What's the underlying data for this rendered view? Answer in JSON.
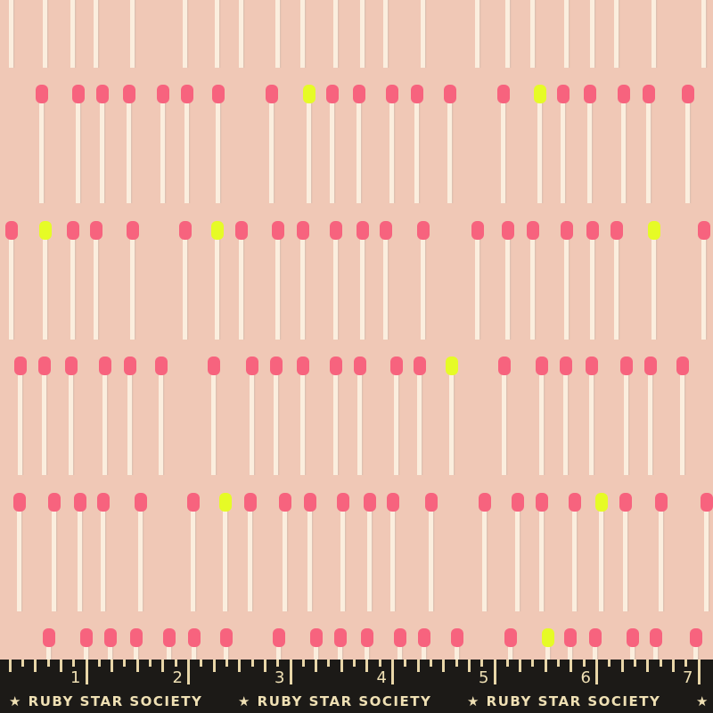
{
  "colors": {
    "background": "#f0c8b6",
    "match_head_pink": "#f7637e",
    "match_head_yellow": "#e6fb26",
    "match_stick": "#fbeede",
    "ruler_band": "#1c1a17",
    "ruler_text": "#efe0b4"
  },
  "ruler": {
    "numbers": [
      "1",
      "2",
      "3",
      "4",
      "5",
      "6",
      "7"
    ],
    "brand": "★ RUBY STAR SOCIETY"
  }
}
